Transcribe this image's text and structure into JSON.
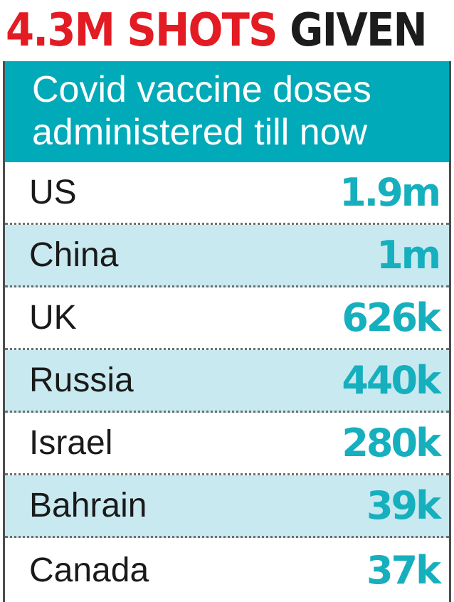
{
  "headline": {
    "red_part": "4.3M SHOTS",
    "dark_part": "GIVEN"
  },
  "subhead": {
    "line1": "Covid vaccine doses",
    "line2": "administered till now"
  },
  "colors": {
    "headline_red": "#e31b23",
    "teal_header": "#00aab8",
    "value_teal": "#15afbe",
    "alt_row": "#c8e9ef"
  },
  "chart_data": {
    "type": "table",
    "title": "4.3M SHOTS GIVEN",
    "subtitle": "Covid vaccine doses administered till now",
    "rows": [
      {
        "country": "US",
        "value_label": "1.9m",
        "value": 1900000
      },
      {
        "country": "China",
        "value_label": "1m",
        "value": 1000000
      },
      {
        "country": "UK",
        "value_label": "626k",
        "value": 626000
      },
      {
        "country": "Russia",
        "value_label": "440k",
        "value": 440000
      },
      {
        "country": "Israel",
        "value_label": "280k",
        "value": 280000
      },
      {
        "country": "Bahrain",
        "value_label": "39k",
        "value": 39000
      },
      {
        "country": "Canada",
        "value_label": "37k",
        "value": 37000
      }
    ]
  }
}
